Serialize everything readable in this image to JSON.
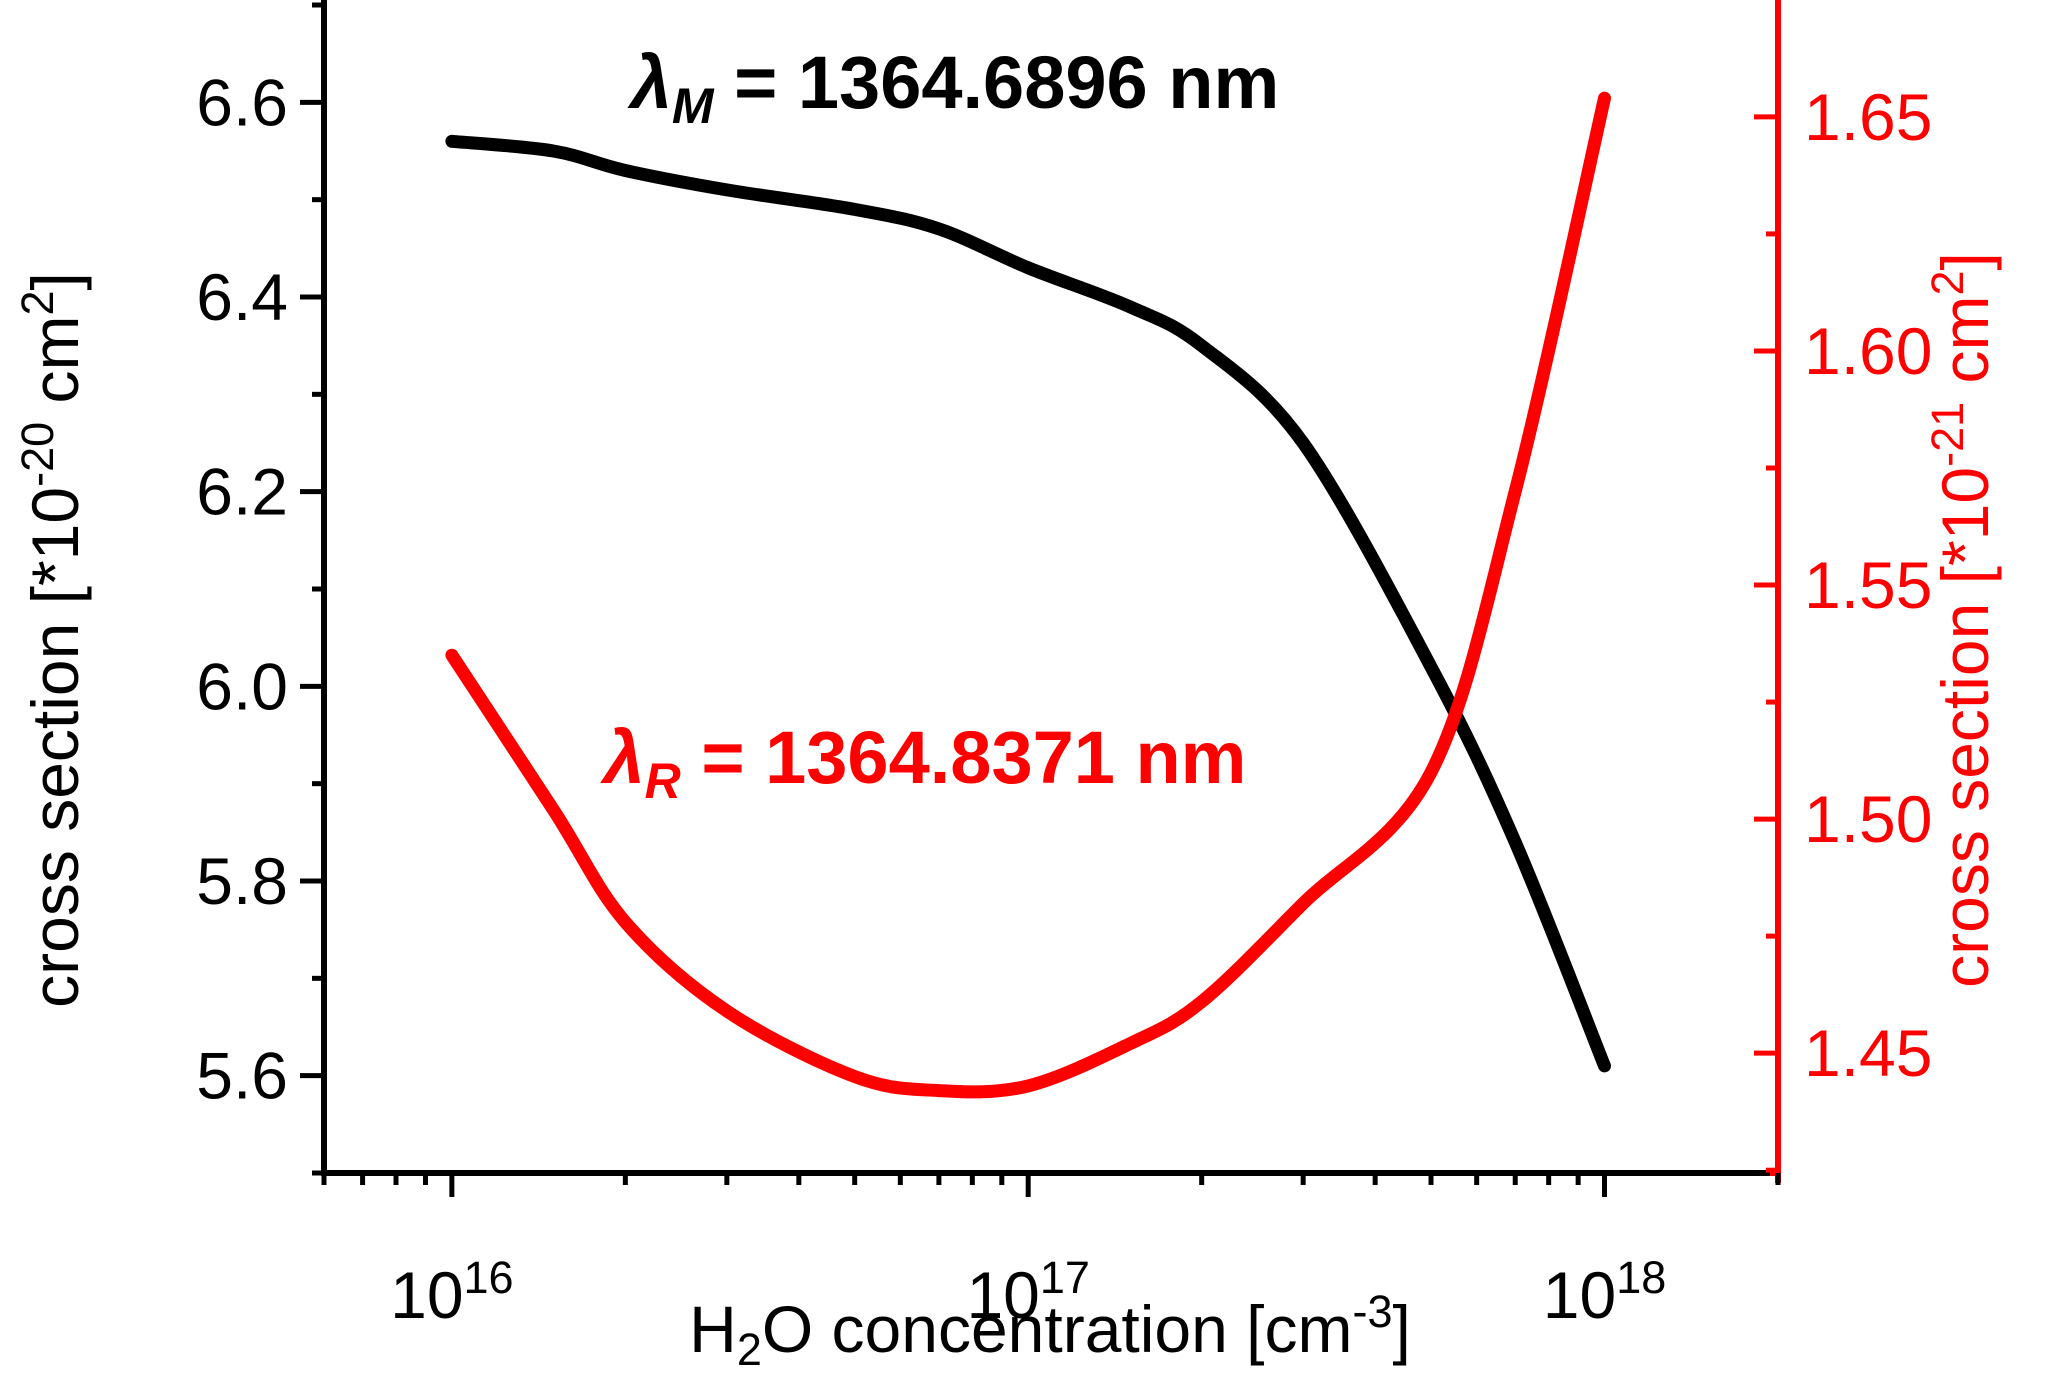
{
  "chart_data": {
    "type": "line",
    "title": "",
    "x_scale": "log",
    "xlim": [
      6000000000000000.0,
      2e+18
    ],
    "ylim_left": [
      5.5,
      6.7
    ],
    "ylim_right": [
      1.4244,
      1.6739
    ],
    "x": [
      1e+16,
      1.5e+16,
      2e+16,
      3e+16,
      5e+16,
      7e+16,
      1e+17,
      1.5e+17,
      2e+17,
      3e+17,
      5e+17,
      7e+17,
      1e+18
    ],
    "series": [
      {
        "id": "black",
        "name": "lambda_M = 1364.6896 nm",
        "axis": "left",
        "color": "#000000",
        "values": [
          6.56,
          6.55,
          6.53,
          6.51,
          6.49,
          6.47,
          6.43,
          6.39,
          6.35,
          6.25,
          6.02,
          5.84,
          5.61
        ]
      },
      {
        "id": "red",
        "name": "lambda_R = 1364.8371 nm",
        "axis": "right",
        "color": "#ff0000",
        "values": [
          1.535,
          1.502,
          1.478,
          1.459,
          1.445,
          1.442,
          1.443,
          1.452,
          1.461,
          1.482,
          1.51,
          1.57,
          1.654
        ]
      }
    ],
    "x_major_ticks": [
      1e+16,
      1e+17,
      1e+18
    ],
    "x_major_labels": [
      {
        "base": "10",
        "exp": "16"
      },
      {
        "base": "10",
        "exp": "17"
      },
      {
        "base": "10",
        "exp": "18"
      }
    ],
    "left_major_ticks": [
      5.6,
      5.8,
      6.0,
      6.2,
      6.4,
      6.6
    ],
    "left_major_labels": [
      "5.6",
      "5.8",
      "6.0",
      "6.2",
      "6.4",
      "6.6"
    ],
    "left_minor_ticks": [
      5.5,
      5.7,
      5.9,
      6.1,
      6.3,
      6.5,
      6.7
    ],
    "right_major_ticks": [
      1.45,
      1.5,
      1.55,
      1.6,
      1.65
    ],
    "right_major_labels": [
      "1.45",
      "1.50",
      "1.55",
      "1.60",
      "1.65"
    ],
    "right_minor_ticks": [
      1.425,
      1.475,
      1.525,
      1.575,
      1.625
    ],
    "xlabel_segments": [
      {
        "t": "H"
      },
      {
        "t": "2",
        "style": "sub"
      },
      {
        "t": "O concentration [cm"
      },
      {
        "t": "-3",
        "style": "sup"
      },
      {
        "t": "]"
      }
    ],
    "ylabel_left_segments": [
      {
        "t": "cross section [*10"
      },
      {
        "t": "-20",
        "style": "sup"
      },
      {
        "t": " cm"
      },
      {
        "t": "2",
        "style": "sup"
      },
      {
        "t": "]"
      }
    ],
    "ylabel_right_segments": [
      {
        "t": "cross section [*10"
      },
      {
        "t": "-21",
        "style": "sup"
      },
      {
        "t": " cm"
      },
      {
        "t": "2",
        "style": "sup"
      },
      {
        "t": "]"
      }
    ],
    "annotations": [
      {
        "id": "lambda-M",
        "color": "#000000",
        "segments": [
          {
            "t": "λ",
            "italic": true
          },
          {
            "t": "M",
            "style": "sub",
            "italic": true
          },
          {
            "t": " = 1364.6896 nm"
          }
        ]
      },
      {
        "id": "lambda-R",
        "color": "#ff0000",
        "segments": [
          {
            "t": "λ",
            "italic": true
          },
          {
            "t": "R",
            "style": "sub",
            "italic": true
          },
          {
            "t": " = 1364.8371 nm"
          }
        ]
      }
    ],
    "axis_colors": {
      "left": "#000000",
      "bottom": "#000000",
      "right": "#ff0000"
    },
    "legend": null,
    "grid": false
  }
}
